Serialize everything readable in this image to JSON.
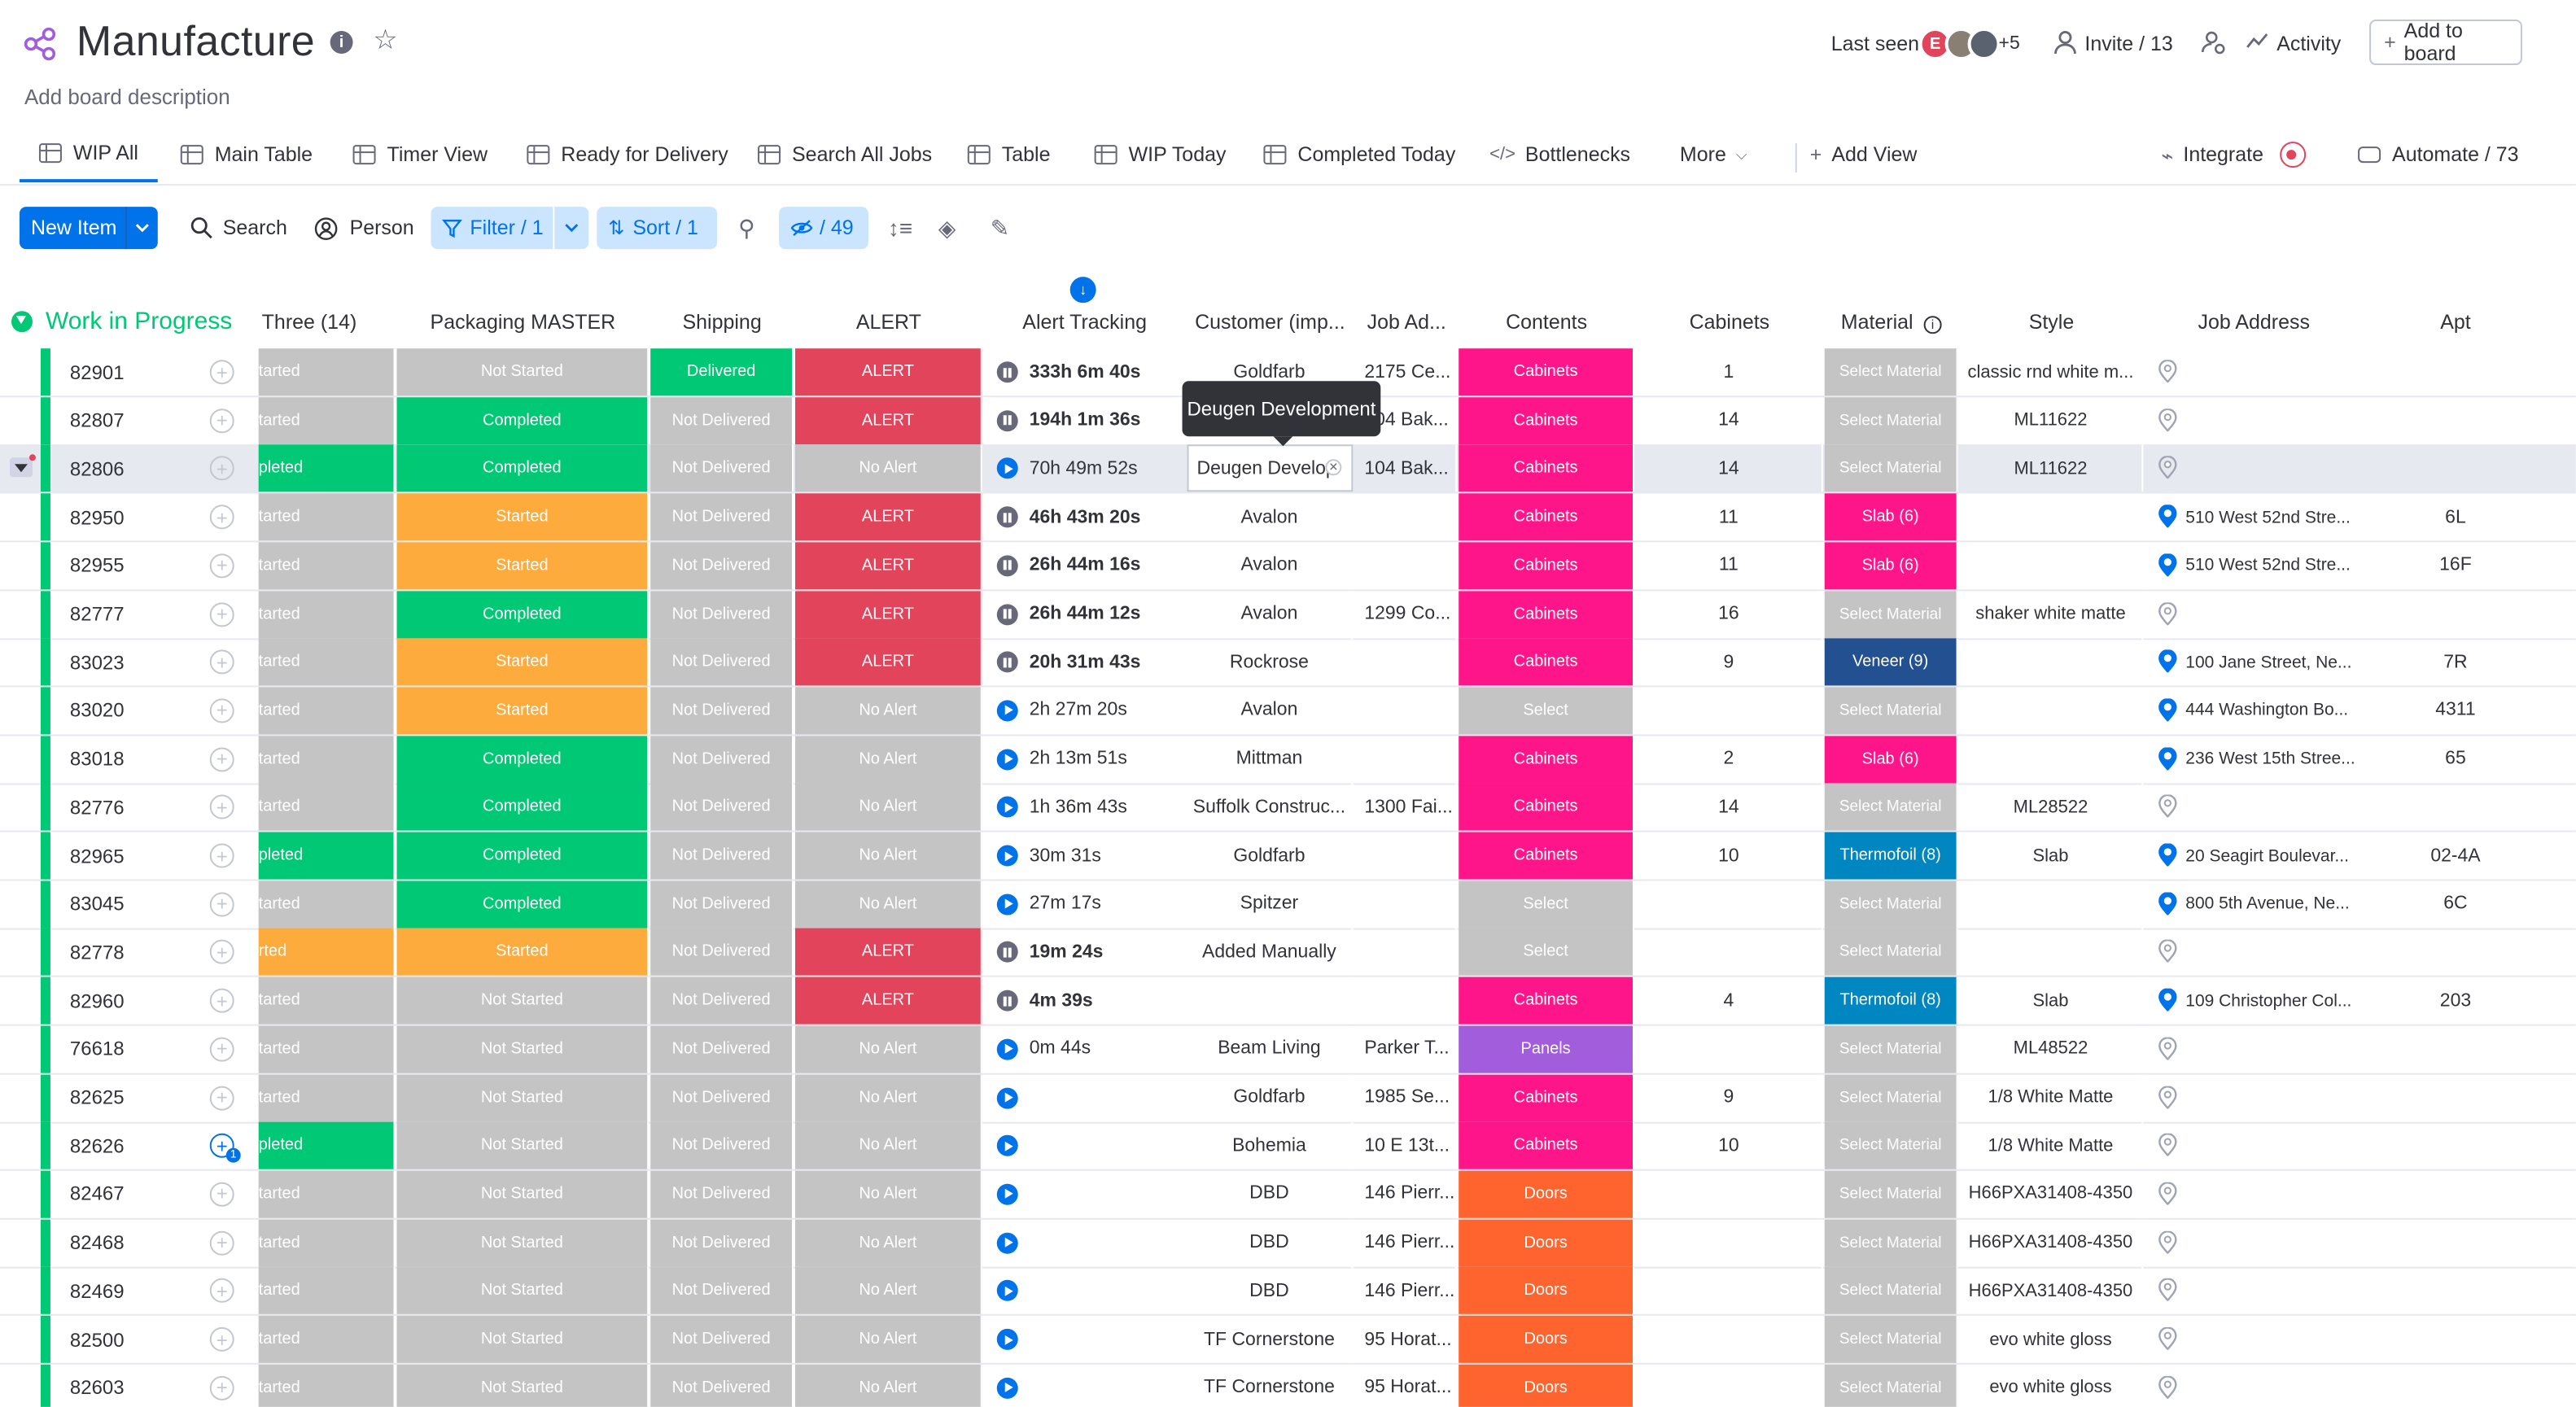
{
  "colors": {
    "brand": "#0073ea",
    "group": "#00c875",
    "not_started": "#c4c4c4",
    "completed": "#00c875",
    "started": "#fdab3d",
    "alert": "#e2445c",
    "delivered": "#00c875",
    "cabinets": "#ff158a",
    "select": "#c4c4c4",
    "panels": "#a25ddc",
    "doors": "#ff642e",
    "slab": "#ff158a",
    "veneer": "#225091",
    "thermofoil": "#0086c0"
  },
  "board": {
    "title": "Manufacture",
    "description": "Add board description"
  },
  "header": {
    "last_seen": "Last seen",
    "avatar_initial": "E",
    "more_count": "+5",
    "invite": "Invite / 13",
    "activity": "Activity",
    "add_to_board": "Add to board"
  },
  "views": {
    "tabs": [
      {
        "label": "WIP All"
      },
      {
        "label": "Main Table"
      },
      {
        "label": "Timer View"
      },
      {
        "label": "Ready for Delivery"
      },
      {
        "label": "Search All Jobs"
      },
      {
        "label": "Table"
      },
      {
        "label": "WIP Today"
      },
      {
        "label": "Completed Today"
      },
      {
        "label": "Bottlenecks"
      },
      {
        "label": "More"
      }
    ],
    "add_view": "Add View",
    "integrate": "Integrate",
    "automate": "Automate / 73"
  },
  "toolbar": {
    "new_item": "New Item",
    "search": "Search",
    "person": "Person",
    "filter": "Filter / 1",
    "sort": "Sort / 1",
    "hidden": "/ 49"
  },
  "group": {
    "title": "Work in Progress"
  },
  "columns": {
    "three": "Three (14)",
    "packaging": "Packaging MASTER",
    "shipping": "Shipping",
    "alert": "ALERT",
    "alert_tracking": "Alert Tracking",
    "customer": "Customer (imp...",
    "job_ad": "Job Ad...",
    "contents": "Contents",
    "cabinets": "Cabinets",
    "material": "Material",
    "style": "Style",
    "job_address": "Job Address",
    "apt": "Apt"
  },
  "tooltip": "Deugen Development",
  "rows": [
    {
      "id": "82901",
      "three": "tarted",
      "pack": "Not Started",
      "ship": "Delivered",
      "alert": "ALERT",
      "timer": "333h 6m 40s",
      "run": false,
      "customer": "Goldfarb",
      "job": "2175 Ce...",
      "contents": "Cabinets",
      "cab": "1",
      "material": "Select Material",
      "style": "classic rnd white m...",
      "addr": "",
      "apt": ""
    },
    {
      "id": "82807",
      "three": "tarted",
      "pack": "Completed",
      "ship": "Not Delivered",
      "alert": "ALERT",
      "timer": "194h 1m 36s",
      "run": false,
      "customer": "",
      "job": "104 Bak...",
      "contents": "Cabinets",
      "cab": "14",
      "material": "Select Material",
      "style": "ML11622",
      "addr": "",
      "apt": ""
    },
    {
      "id": "82806",
      "three": "pleted",
      "pack": "Completed",
      "ship": "Not Delivered",
      "alert": "No Alert",
      "timer": "70h 49m 52s",
      "run": true,
      "customer": "Deugen Develop",
      "job": "104 Bak...",
      "contents": "Cabinets",
      "cab": "14",
      "material": "Select Material",
      "style": "ML11622",
      "addr": "",
      "apt": ""
    },
    {
      "id": "82950",
      "three": "tarted",
      "pack": "Started",
      "ship": "Not Delivered",
      "alert": "ALERT",
      "timer": "46h 43m 20s",
      "run": false,
      "customer": "Avalon",
      "job": "",
      "contents": "Cabinets",
      "cab": "11",
      "material": "Slab (6)",
      "style": "",
      "addr": "510 West 52nd Stre...",
      "apt": "6L"
    },
    {
      "id": "82955",
      "three": "tarted",
      "pack": "Started",
      "ship": "Not Delivered",
      "alert": "ALERT",
      "timer": "26h 44m 16s",
      "run": false,
      "customer": "Avalon",
      "job": "",
      "contents": "Cabinets",
      "cab": "11",
      "material": "Slab (6)",
      "style": "",
      "addr": "510 West 52nd Stre...",
      "apt": "16F"
    },
    {
      "id": "82777",
      "three": "tarted",
      "pack": "Completed",
      "ship": "Not Delivered",
      "alert": "ALERT",
      "timer": "26h 44m 12s",
      "run": false,
      "customer": "Avalon",
      "job": "1299 Co...",
      "contents": "Cabinets",
      "cab": "16",
      "material": "Select Material",
      "style": "shaker white matte",
      "addr": "",
      "apt": ""
    },
    {
      "id": "83023",
      "three": "tarted",
      "pack": "Started",
      "ship": "Not Delivered",
      "alert": "ALERT",
      "timer": "20h 31m 43s",
      "run": false,
      "customer": "Rockrose",
      "job": "",
      "contents": "Cabinets",
      "cab": "9",
      "material": "Veneer (9)",
      "style": "",
      "addr": "100 Jane Street, Ne...",
      "apt": "7R"
    },
    {
      "id": "83020",
      "three": "tarted",
      "pack": "Started",
      "ship": "Not Delivered",
      "alert": "No Alert",
      "timer": "2h 27m 20s",
      "run": true,
      "customer": "Avalon",
      "job": "",
      "contents": "Select",
      "cab": "",
      "material": "Select Material",
      "style": "",
      "addr": "444 Washington Bo...",
      "apt": "4311"
    },
    {
      "id": "83018",
      "three": "tarted",
      "pack": "Completed",
      "ship": "Not Delivered",
      "alert": "No Alert",
      "timer": "2h 13m 51s",
      "run": true,
      "customer": "Mittman",
      "job": "",
      "contents": "Cabinets",
      "cab": "2",
      "material": "Slab (6)",
      "style": "",
      "addr": "236 West 15th Stree...",
      "apt": "65"
    },
    {
      "id": "82776",
      "three": "tarted",
      "pack": "Completed",
      "ship": "Not Delivered",
      "alert": "No Alert",
      "timer": "1h 36m 43s",
      "run": true,
      "customer": "Suffolk Construc...",
      "job": "1300 Fai...",
      "contents": "Cabinets",
      "cab": "14",
      "material": "Select Material",
      "style": "ML28522",
      "addr": "",
      "apt": ""
    },
    {
      "id": "82965",
      "three": "pleted",
      "pack": "Completed",
      "ship": "Not Delivered",
      "alert": "No Alert",
      "timer": "30m 31s",
      "run": true,
      "customer": "Goldfarb",
      "job": "",
      "contents": "Cabinets",
      "cab": "10",
      "material": "Thermofoil (8)",
      "style": "Slab",
      "addr": "20 Seagirt Boulevar...",
      "apt": "02-4A"
    },
    {
      "id": "83045",
      "three": "tarted",
      "pack": "Completed",
      "ship": "Not Delivered",
      "alert": "No Alert",
      "timer": "27m 17s",
      "run": true,
      "customer": "Spitzer",
      "job": "",
      "contents": "Select",
      "cab": "",
      "material": "Select Material",
      "style": "",
      "addr": "800 5th Avenue, Ne...",
      "apt": "6C"
    },
    {
      "id": "82778",
      "three": "rted",
      "pack": "Started",
      "ship": "Not Delivered",
      "alert": "ALERT",
      "timer": "19m 24s",
      "run": false,
      "customer": "Added Manually",
      "job": "",
      "contents": "Select",
      "cab": "",
      "material": "Select Material",
      "style": "",
      "addr": "",
      "apt": ""
    },
    {
      "id": "82960",
      "three": "tarted",
      "pack": "Not Started",
      "ship": "Not Delivered",
      "alert": "ALERT",
      "timer": "4m 39s",
      "run": false,
      "customer": "",
      "job": "",
      "contents": "Cabinets",
      "cab": "4",
      "material": "Thermofoil (8)",
      "style": "Slab",
      "addr": "109 Christopher Col...",
      "apt": "203"
    },
    {
      "id": "76618",
      "three": "tarted",
      "pack": "Not Started",
      "ship": "Not Delivered",
      "alert": "No Alert",
      "timer": "0m 44s",
      "run": true,
      "customer": "Beam Living",
      "job": "Parker T...",
      "contents": "Panels",
      "cab": "",
      "material": "Select Material",
      "style": "ML48522",
      "addr": "",
      "apt": ""
    },
    {
      "id": "82625",
      "three": "tarted",
      "pack": "Not Started",
      "ship": "Not Delivered",
      "alert": "No Alert",
      "timer": "",
      "run": true,
      "customer": "Goldfarb",
      "job": "1985 Se...",
      "contents": "Cabinets",
      "cab": "9",
      "material": "Select Material",
      "style": "1/8 White Matte",
      "addr": "",
      "apt": ""
    },
    {
      "id": "82626",
      "three": "pleted",
      "pack": "Not Started",
      "ship": "Not Delivered",
      "alert": "No Alert",
      "timer": "",
      "run": true,
      "customer": "Bohemia",
      "job": "10 E 13t...",
      "contents": "Cabinets",
      "cab": "10",
      "material": "Select Material",
      "style": "1/8 White Matte",
      "addr": "",
      "apt": ""
    },
    {
      "id": "82467",
      "three": "tarted",
      "pack": "Not Started",
      "ship": "Not Delivered",
      "alert": "No Alert",
      "timer": "",
      "run": true,
      "customer": "DBD",
      "job": "146 Pierr...",
      "contents": "Doors",
      "cab": "",
      "material": "Select Material",
      "style": "H66PXA31408-4350",
      "addr": "",
      "apt": ""
    },
    {
      "id": "82468",
      "three": "tarted",
      "pack": "Not Started",
      "ship": "Not Delivered",
      "alert": "No Alert",
      "timer": "",
      "run": true,
      "customer": "DBD",
      "job": "146 Pierr...",
      "contents": "Doors",
      "cab": "",
      "material": "Select Material",
      "style": "H66PXA31408-4350",
      "addr": "",
      "apt": ""
    },
    {
      "id": "82469",
      "three": "tarted",
      "pack": "Not Started",
      "ship": "Not Delivered",
      "alert": "No Alert",
      "timer": "",
      "run": true,
      "customer": "DBD",
      "job": "146 Pierr...",
      "contents": "Doors",
      "cab": "",
      "material": "Select Material",
      "style": "H66PXA31408-4350",
      "addr": "",
      "apt": ""
    },
    {
      "id": "82500",
      "three": "tarted",
      "pack": "Not Started",
      "ship": "Not Delivered",
      "alert": "No Alert",
      "timer": "",
      "run": true,
      "customer": "TF Cornerstone",
      "job": "95 Horat...",
      "contents": "Doors",
      "cab": "",
      "material": "Select Material",
      "style": "evo white gloss",
      "addr": "",
      "apt": ""
    },
    {
      "id": "82603",
      "three": "tarted",
      "pack": "Not Started",
      "ship": "Not Delivered",
      "alert": "No Alert",
      "timer": "",
      "run": true,
      "customer": "TF Cornerstone",
      "job": "95 Horat...",
      "contents": "Doors",
      "cab": "",
      "material": "Select Material",
      "style": "evo white gloss",
      "addr": "",
      "apt": ""
    }
  ]
}
